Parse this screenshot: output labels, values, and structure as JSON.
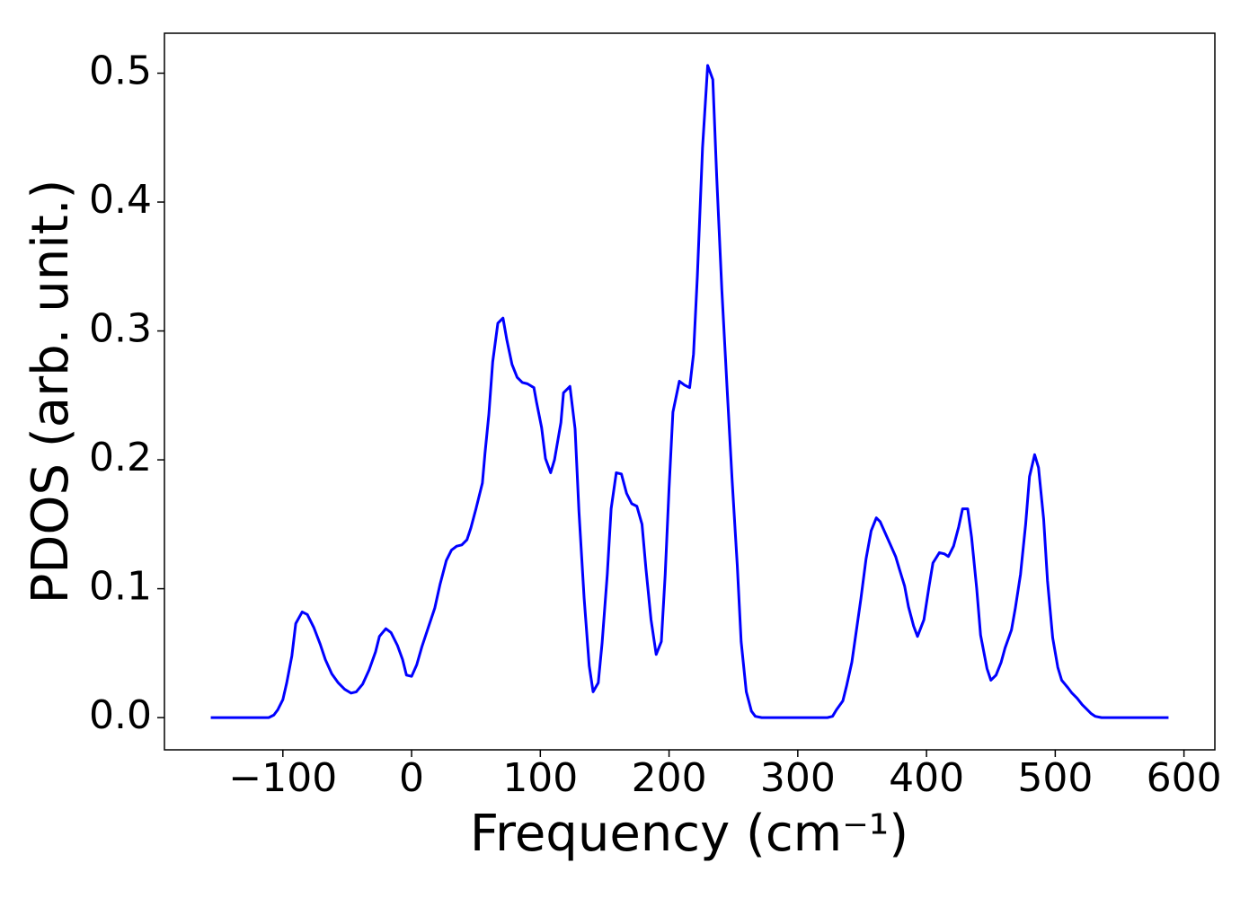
{
  "chart_data": {
    "type": "line",
    "xlabel": "Frequency (cm⁻¹)",
    "ylabel": "PDOS (arb. unit.)",
    "xlim": [
      -192,
      624
    ],
    "ylim": [
      -0.025,
      0.531
    ],
    "xticks": [
      {
        "value": -100,
        "label": "−100"
      },
      0,
      100,
      200,
      300,
      400,
      500,
      600
    ],
    "yticks": [
      {
        "value": 0,
        "label": "0.0"
      },
      0.1,
      0.2,
      0.3,
      0.4,
      0.5
    ],
    "grid": false,
    "x": [
      -156,
      -111,
      -107,
      -104,
      -100,
      -97,
      -93,
      -90,
      -85,
      -81,
      -76,
      -71,
      -67,
      -62,
      -57,
      -52,
      -47,
      -43,
      -38,
      -33,
      -28,
      -25,
      -20,
      -16,
      -11,
      -7,
      -4,
      0,
      4,
      8,
      12,
      18,
      22,
      27,
      31,
      35,
      39,
      43,
      46,
      50,
      55,
      57,
      60,
      63,
      67,
      71,
      74,
      78,
      82,
      86,
      90,
      95,
      97,
      101,
      104,
      108,
      111,
      116,
      118,
      123,
      127,
      130,
      134,
      138,
      141,
      145,
      148,
      152,
      155,
      159,
      163,
      167,
      171,
      175,
      179,
      182,
      186,
      190,
      194,
      197,
      200,
      203,
      208,
      212,
      216,
      219,
      222,
      226,
      230,
      234,
      237,
      241,
      245,
      249,
      253,
      256,
      260,
      264,
      267,
      272,
      323,
      327,
      330,
      335,
      338,
      342,
      345,
      349,
      353,
      357,
      361,
      364,
      368,
      372,
      376,
      379,
      383,
      386,
      390,
      393,
      398,
      402,
      405,
      410,
      414,
      417,
      421,
      425,
      428,
      432,
      435,
      439,
      442,
      447,
      450,
      454,
      458,
      461,
      466,
      469,
      473,
      477,
      480,
      484,
      487,
      491,
      494,
      498,
      502,
      505,
      510,
      513,
      517,
      521,
      524,
      528,
      531,
      536,
      588
    ],
    "series": [
      {
        "name": "PDOS",
        "color": "#0000ff",
        "values": [
          0,
          0,
          0.002,
          0.006,
          0.014,
          0.027,
          0.048,
          0.073,
          0.082,
          0.08,
          0.07,
          0.057,
          0.045,
          0.034,
          0.027,
          0.022,
          0.019,
          0.02,
          0.026,
          0.037,
          0.051,
          0.063,
          0.069,
          0.066,
          0.056,
          0.045,
          0.033,
          0.032,
          0.041,
          0.055,
          0.067,
          0.085,
          0.103,
          0.122,
          0.13,
          0.133,
          0.134,
          0.138,
          0.147,
          0.162,
          0.182,
          0.205,
          0.235,
          0.276,
          0.306,
          0.31,
          0.293,
          0.274,
          0.264,
          0.26,
          0.259,
          0.256,
          0.245,
          0.225,
          0.201,
          0.19,
          0.2,
          0.229,
          0.252,
          0.257,
          0.224,
          0.16,
          0.093,
          0.04,
          0.02,
          0.027,
          0.058,
          0.111,
          0.162,
          0.19,
          0.189,
          0.174,
          0.166,
          0.164,
          0.15,
          0.116,
          0.076,
          0.049,
          0.059,
          0.111,
          0.178,
          0.237,
          0.261,
          0.258,
          0.256,
          0.282,
          0.343,
          0.442,
          0.506,
          0.495,
          0.42,
          0.332,
          0.257,
          0.184,
          0.118,
          0.059,
          0.02,
          0.005,
          0.001,
          0,
          0,
          0.001,
          0.006,
          0.013,
          0.025,
          0.043,
          0.064,
          0.092,
          0.123,
          0.145,
          0.155,
          0.152,
          0.143,
          0.134,
          0.125,
          0.115,
          0.102,
          0.086,
          0.071,
          0.063,
          0.076,
          0.102,
          0.12,
          0.128,
          0.127,
          0.125,
          0.133,
          0.148,
          0.162,
          0.162,
          0.14,
          0.1,
          0.064,
          0.038,
          0.029,
          0.033,
          0.043,
          0.054,
          0.068,
          0.085,
          0.111,
          0.15,
          0.187,
          0.204,
          0.194,
          0.154,
          0.106,
          0.062,
          0.039,
          0.029,
          0.023,
          0.019,
          0.015,
          0.01,
          0.007,
          0.003,
          0.001,
          0,
          0
        ]
      }
    ]
  }
}
